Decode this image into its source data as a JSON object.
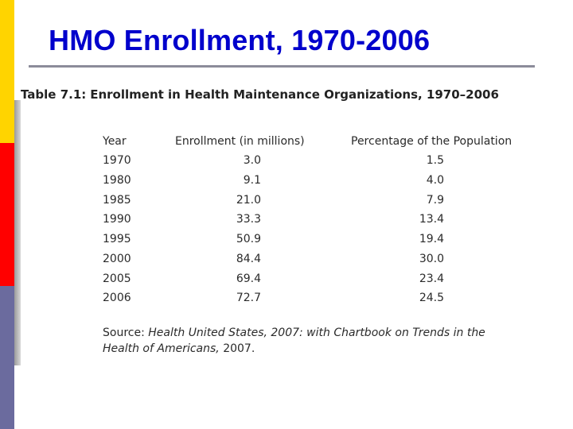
{
  "slide": {
    "title": "HMO Enrollment, 1970-2006",
    "accent_colors": {
      "yellow": "#FFD400",
      "red": "#FF0000",
      "blue": "#6B6B9E",
      "title": "#0000CC"
    }
  },
  "table": {
    "caption_label": "Table 7.1:",
    "caption_text": "Enrollment in Health Maintenance Organizations, 1970–2006",
    "headers": [
      "Year",
      "Enrollment (in millions)",
      "Percentage of the Population"
    ],
    "rows": [
      [
        "1970",
        "3.0",
        "1.5"
      ],
      [
        "1980",
        "9.1",
        "4.0"
      ],
      [
        "1985",
        "21.0",
        "7.9"
      ],
      [
        "1990",
        "33.3",
        "13.4"
      ],
      [
        "1995",
        "50.9",
        "19.4"
      ],
      [
        "2000",
        "84.4",
        "30.0"
      ],
      [
        "2005",
        "69.4",
        "23.4"
      ],
      [
        "2006",
        "72.7",
        "24.5"
      ]
    ],
    "source_label": "Source:",
    "source_title": "Health United States, 2007: with Chartbook on Trends in the Health of Americans,",
    "source_year": "2007."
  }
}
